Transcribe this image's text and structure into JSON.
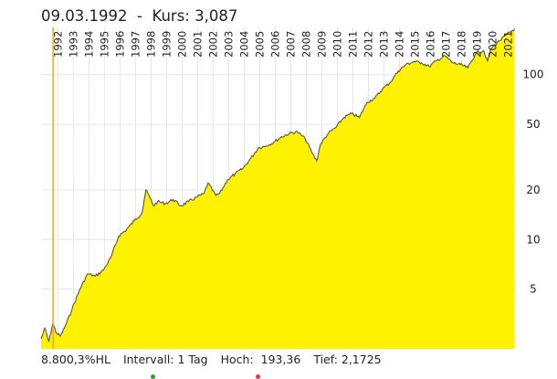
{
  "header": {
    "date": "09.03.1992",
    "separator": "-",
    "price_label": "Kurs:",
    "price": "3,087"
  },
  "footer": {
    "performance": "8.800,3%HL",
    "interval": "Intervall: 1 Tag",
    "high": "Hoch:  193,36",
    "low": "Tief: 2,1725"
  },
  "colors": {
    "area_fill": "#fff200",
    "line": "#555555",
    "cursor": "#f5a623",
    "grid": "#e6e6e6",
    "legend_dots": [
      "#2ca02c",
      "#e0334c"
    ]
  },
  "chart_data": {
    "type": "area",
    "x_scale": "time",
    "y_scale": "log",
    "xlim": [
      "1991-06-01",
      "2021-12-31"
    ],
    "ylim": [
      2.1725,
      193.36
    ],
    "cursor_date": "1992-03-09",
    "cursor_value": 3.087,
    "x_ticks": [
      "1992",
      "1993",
      "1994",
      "1995",
      "1996",
      "1997",
      "1998",
      "1999",
      "2000",
      "2001",
      "2002",
      "2003",
      "2004",
      "2005",
      "2006",
      "2007",
      "2008",
      "2009",
      "2010",
      "2011",
      "2012",
      "2013",
      "2014",
      "2015",
      "2016",
      "2017",
      "2018",
      "2019",
      "2020",
      "2021"
    ],
    "y_ticks": [
      5,
      10,
      20,
      50,
      100
    ],
    "series": [
      {
        "x": [
          "1991-06",
          "1991-09",
          "1991-12",
          "1992-03",
          "1992-06",
          "1992-09",
          "1992-12",
          "1993-06",
          "1993-12",
          "1994-06",
          "1994-12",
          "1995-06",
          "1995-12",
          "1996-06",
          "1996-12",
          "1997-06",
          "1997-12",
          "1998-03",
          "1998-06",
          "1998-09",
          "1998-12",
          "1999-06",
          "1999-12",
          "2000-06",
          "2000-12",
          "2001-06",
          "2001-12",
          "2002-03",
          "2002-09",
          "2002-12",
          "2003-06",
          "2003-12",
          "2004-06",
          "2004-12",
          "2005-06",
          "2005-12",
          "2006-06",
          "2006-12",
          "2007-06",
          "2007-12",
          "2008-06",
          "2008-12",
          "2009-03",
          "2009-06",
          "2009-12",
          "2010-06",
          "2010-12",
          "2011-06",
          "2011-12",
          "2012-06",
          "2012-12",
          "2013-06",
          "2013-12",
          "2014-06",
          "2014-12",
          "2015-06",
          "2015-12",
          "2016-06",
          "2016-12",
          "2017-06",
          "2017-12",
          "2018-06",
          "2018-12",
          "2019-06",
          "2019-12",
          "2020-03",
          "2020-06",
          "2020-12",
          "2021-06",
          "2021-12"
        ],
        "values": [
          2.5,
          2.9,
          2.4,
          3.1,
          2.7,
          2.6,
          2.9,
          3.8,
          5.0,
          6.2,
          6.0,
          6.5,
          7.8,
          10.5,
          11.5,
          13.0,
          14.5,
          20.0,
          18.0,
          16.0,
          17.0,
          16.5,
          17.5,
          16.0,
          17.0,
          18.0,
          19.0,
          22.0,
          18.5,
          19.0,
          23.0,
          25.0,
          27.0,
          31.0,
          36.0,
          37.0,
          39.0,
          42.0,
          44.0,
          45.0,
          41.0,
          33.0,
          30.0,
          38.0,
          44.0,
          48.0,
          55.0,
          58.0,
          55.0,
          68.0,
          72.0,
          82.0,
          90.0,
          105.0,
          115.0,
          120.0,
          118.0,
          112.0,
          122.0,
          130.0,
          118.0,
          115.0,
          110.0,
          135.0,
          140.0,
          120.0,
          145.0,
          160.0,
          175.0,
          190.0
        ]
      }
    ]
  }
}
